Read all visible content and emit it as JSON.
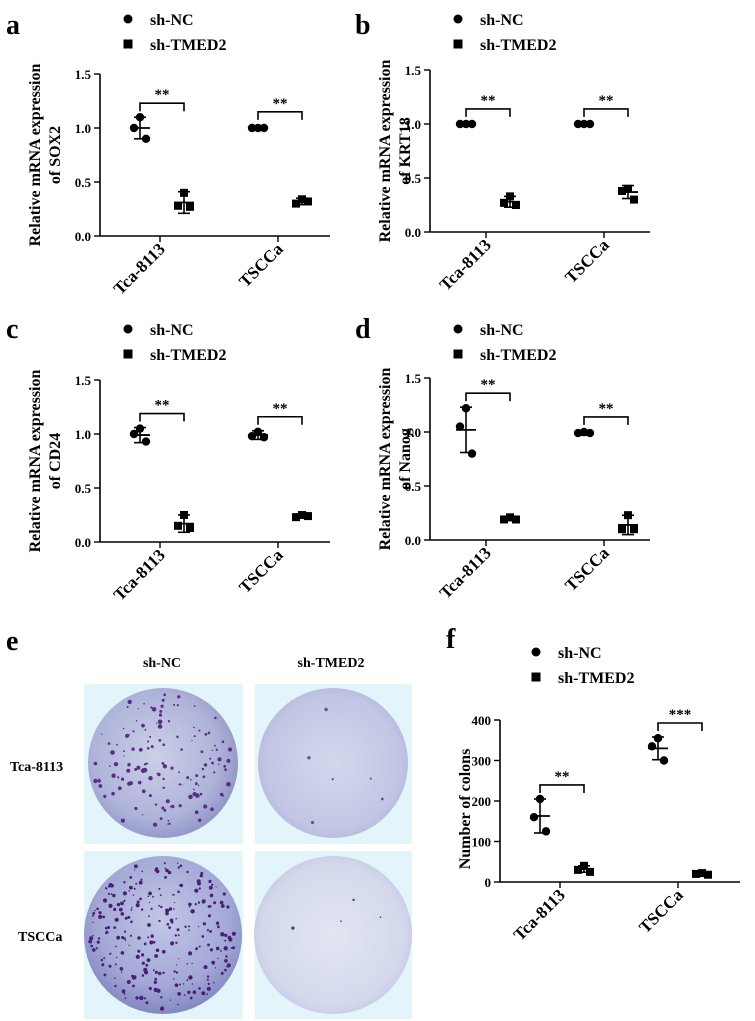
{
  "panel_e": {
    "letter": "e",
    "column_labels": [
      "sh-NC",
      "sh-TMED2"
    ],
    "row_labels": [
      "Tca-8113",
      "TSCCa"
    ]
  },
  "chart_data": [
    {
      "panel": "a",
      "type": "scatter",
      "ylabel_lines": [
        "Relative mRNA expression",
        "of SOX2"
      ],
      "categories": [
        "Tca-8113",
        "TSCCa"
      ],
      "ylim": [
        0,
        1.5
      ],
      "yticks": [
        "0.0",
        "0.5",
        "1.0",
        "1.5"
      ],
      "legend": [
        "sh-NC",
        "sh-TMED2"
      ],
      "series": [
        {
          "name": "sh-NC",
          "marker": "circle",
          "points": [
            [
              1.1,
              1.0,
              0.9
            ],
            [
              1.0,
              1.0,
              1.0
            ]
          ],
          "mean": [
            1.0,
            1.0
          ],
          "sd": [
            0.1,
            0.02
          ]
        },
        {
          "name": "sh-TMED2",
          "marker": "square",
          "points": [
            [
              0.4,
              0.28,
              0.27
            ],
            [
              0.34,
              0.3,
              0.32
            ]
          ],
          "mean": [
            0.31,
            0.32
          ],
          "sd": [
            0.1,
            0.03
          ]
        }
      ],
      "significance": [
        "**",
        "**"
      ]
    },
    {
      "panel": "b",
      "type": "scatter",
      "ylabel_lines": [
        "Relative mRNA expression",
        "of KRT18"
      ],
      "categories": [
        "Tca-8113",
        "TSCCa"
      ],
      "ylim": [
        0,
        1.5
      ],
      "yticks": [
        "0.0",
        "0.5",
        "1.0",
        "1.5"
      ],
      "legend": [
        "sh-NC",
        "sh-TMED2"
      ],
      "series": [
        {
          "name": "sh-NC",
          "marker": "circle",
          "points": [
            [
              1.0,
              1.0,
              1.0
            ],
            [
              1.0,
              1.0,
              1.0
            ]
          ],
          "mean": [
            1.0,
            1.0
          ],
          "sd": [
            0.01,
            0.01
          ]
        },
        {
          "name": "sh-TMED2",
          "marker": "square",
          "points": [
            [
              0.33,
              0.27,
              0.25
            ],
            [
              0.4,
              0.38,
              0.3
            ]
          ],
          "mean": [
            0.28,
            0.37
          ],
          "sd": [
            0.05,
            0.06
          ]
        }
      ],
      "significance": [
        "**",
        "**"
      ]
    },
    {
      "panel": "c",
      "type": "scatter",
      "ylabel_lines": [
        "Relative mRNA expression",
        "of CD24"
      ],
      "categories": [
        "Tca-8113",
        "TSCCa"
      ],
      "ylim": [
        0,
        1.5
      ],
      "yticks": [
        "0.0",
        "0.5",
        "1.0",
        "1.5"
      ],
      "legend": [
        "sh-NC",
        "sh-TMED2"
      ],
      "series": [
        {
          "name": "sh-NC",
          "marker": "circle",
          "points": [
            [
              1.05,
              1.0,
              0.93
            ],
            [
              1.02,
              0.98,
              0.97
            ]
          ],
          "mean": [
            0.99,
            0.99
          ],
          "sd": [
            0.07,
            0.04
          ]
        },
        {
          "name": "sh-TMED2",
          "marker": "square",
          "points": [
            [
              0.25,
              0.15,
              0.13
            ],
            [
              0.25,
              0.23,
              0.24
            ]
          ],
          "mean": [
            0.17,
            0.24
          ],
          "sd": [
            0.08,
            0.02
          ]
        }
      ],
      "significance": [
        "**",
        "**"
      ]
    },
    {
      "panel": "d",
      "type": "scatter",
      "ylabel_lines": [
        "Relative mRNA expression",
        "of Nanog"
      ],
      "categories": [
        "Tca-8113",
        "TSCCa"
      ],
      "ylim": [
        0,
        1.5
      ],
      "yticks": [
        "0.0",
        "0.5",
        "1.0",
        "1.5"
      ],
      "legend": [
        "sh-NC",
        "sh-TMED2"
      ],
      "series": [
        {
          "name": "sh-NC",
          "marker": "circle",
          "points": [
            [
              1.22,
              1.05,
              0.8
            ],
            [
              1.0,
              0.99,
              0.99
            ]
          ],
          "mean": [
            1.02,
            0.99
          ],
          "sd": [
            0.21,
            0.02
          ]
        },
        {
          "name": "sh-TMED2",
          "marker": "square",
          "points": [
            [
              0.21,
              0.19,
              0.19
            ],
            [
              0.23,
              0.1,
              0.1
            ]
          ],
          "mean": [
            0.2,
            0.14
          ],
          "sd": [
            0.02,
            0.09
          ]
        }
      ],
      "significance": [
        "**",
        "**"
      ]
    },
    {
      "panel": "f",
      "type": "scatter",
      "ylabel_lines": [
        "Number of colons"
      ],
      "categories": [
        "Tca-8113",
        "TSCCa"
      ],
      "ylim": [
        0,
        400
      ],
      "yticks": [
        "0",
        "100",
        "200",
        "300",
        "400"
      ],
      "legend": [
        "sh-NC",
        "sh-TMED2"
      ],
      "series": [
        {
          "name": "sh-NC",
          "marker": "circle",
          "points": [
            [
              205,
              160,
              125
            ],
            [
              355,
              335,
              300
            ]
          ],
          "mean": [
            163,
            330
          ],
          "sd": [
            42,
            28
          ]
        },
        {
          "name": "sh-TMED2",
          "marker": "square",
          "points": [
            [
              40,
              30,
              25
            ],
            [
              22,
              20,
              18
            ]
          ],
          "mean": [
            32,
            20
          ],
          "sd": [
            8,
            3
          ]
        }
      ],
      "significance": [
        "**",
        "***"
      ]
    }
  ]
}
